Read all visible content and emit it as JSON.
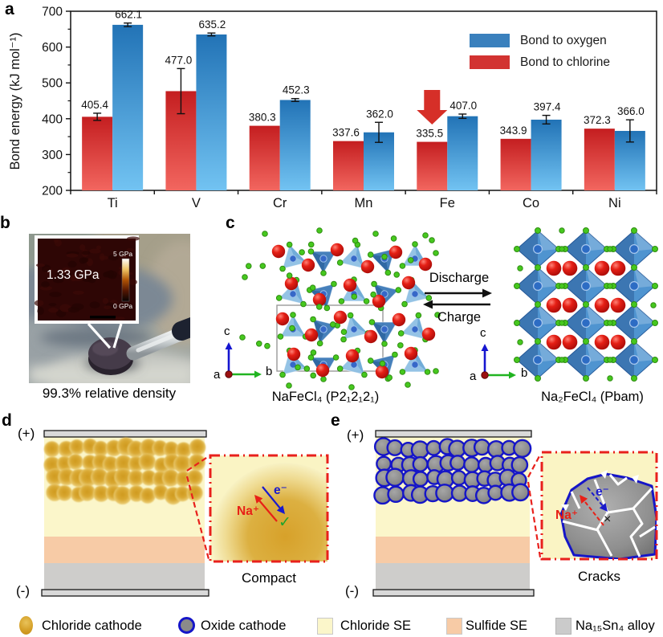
{
  "panels": {
    "a": {
      "label": "a"
    },
    "b": {
      "label": "b"
    },
    "c": {
      "label": "c"
    },
    "d": {
      "label": "d"
    },
    "e": {
      "label": "e"
    }
  },
  "chart_data": {
    "type": "bar",
    "title": "",
    "xlabel": "",
    "ylabel": "Bond energy (kJ mol⁻¹)",
    "ylim": [
      200,
      700
    ],
    "yticks": [
      200,
      300,
      400,
      500,
      600,
      700
    ],
    "grid": false,
    "legend_position": "upper right",
    "categories": [
      "Ti",
      "V",
      "Cr",
      "Mn",
      "Fe",
      "Co",
      "Ni"
    ],
    "series": [
      {
        "name": "Bond to chlorine",
        "color": "#d23331",
        "values": [
          405.4,
          477.0,
          380.3,
          337.6,
          335.5,
          343.9,
          372.3
        ],
        "errors": [
          10,
          63,
          0,
          0,
          0,
          0,
          0
        ]
      },
      {
        "name": "Bond to oxygen",
        "color": "#3a80bd",
        "values": [
          662.1,
          635.2,
          452.3,
          362.0,
          407.0,
          397.4,
          366.0
        ],
        "errors": [
          5,
          4,
          4,
          28,
          6,
          12,
          31
        ]
      }
    ],
    "annotation": {
      "type": "down-arrow",
      "category": "Fe",
      "target_series": "Bond to chlorine",
      "color": "#d62f28"
    }
  },
  "chart_legend": {
    "oxygen": "Bond to oxygen",
    "chlorine": "Bond to chlorine"
  },
  "panel_b": {
    "inset_value": "1.33 GPa",
    "scale_top": "5 GPa",
    "scale_bottom": "0 GPa",
    "caption": "99.3% relative density"
  },
  "panel_c": {
    "forward": "Discharge",
    "backward": "Charge",
    "left_formula": "NaFeCl₄ (P2₁2₁2₁)",
    "right_formula": "Na₂FeCl₄ (Pbam)",
    "axes": {
      "a": "a",
      "b": "b",
      "c": "c"
    }
  },
  "panel_d": {
    "positive": "(+)",
    "negative": "(-)",
    "ion": "Na⁺",
    "electron": "e⁻",
    "check": "✓",
    "caption": "Compact"
  },
  "panel_e": {
    "positive": "(+)",
    "negative": "(-)",
    "ion": "Na⁺",
    "electron": "e⁻",
    "cross": "×",
    "caption": "Cracks"
  },
  "legend_bottom": {
    "items": [
      {
        "swatch": "gold-sphere",
        "label": "Chloride cathode"
      },
      {
        "swatch": "oxide-sphere",
        "label": "Oxide cathode"
      },
      {
        "swatch": "pale-yellow-square",
        "label": "Chloride SE"
      },
      {
        "swatch": "peach-square",
        "label": "Sulfide SE"
      },
      {
        "swatch": "grey-square",
        "label": "Na₁₅Sn₄ alloy"
      }
    ]
  },
  "colors": {
    "oxygen_bar_top": "#2273b6",
    "oxygen_bar_bottom": "#72c3f2",
    "chlorine_bar_top": "#c41e20",
    "chlorine_bar_bottom": "#f2665f",
    "arrow_red": "#d62f28",
    "chloride_se": "#fbf6ca",
    "sulfide_se": "#f7cba6",
    "alloy_grey": "#cecdcb",
    "ion_red": "#e82017",
    "electron_blue": "#1a1acc",
    "check_green": "#1fa32c",
    "inset_border": "#e8201c",
    "oxide_ring": "#1515c8"
  }
}
